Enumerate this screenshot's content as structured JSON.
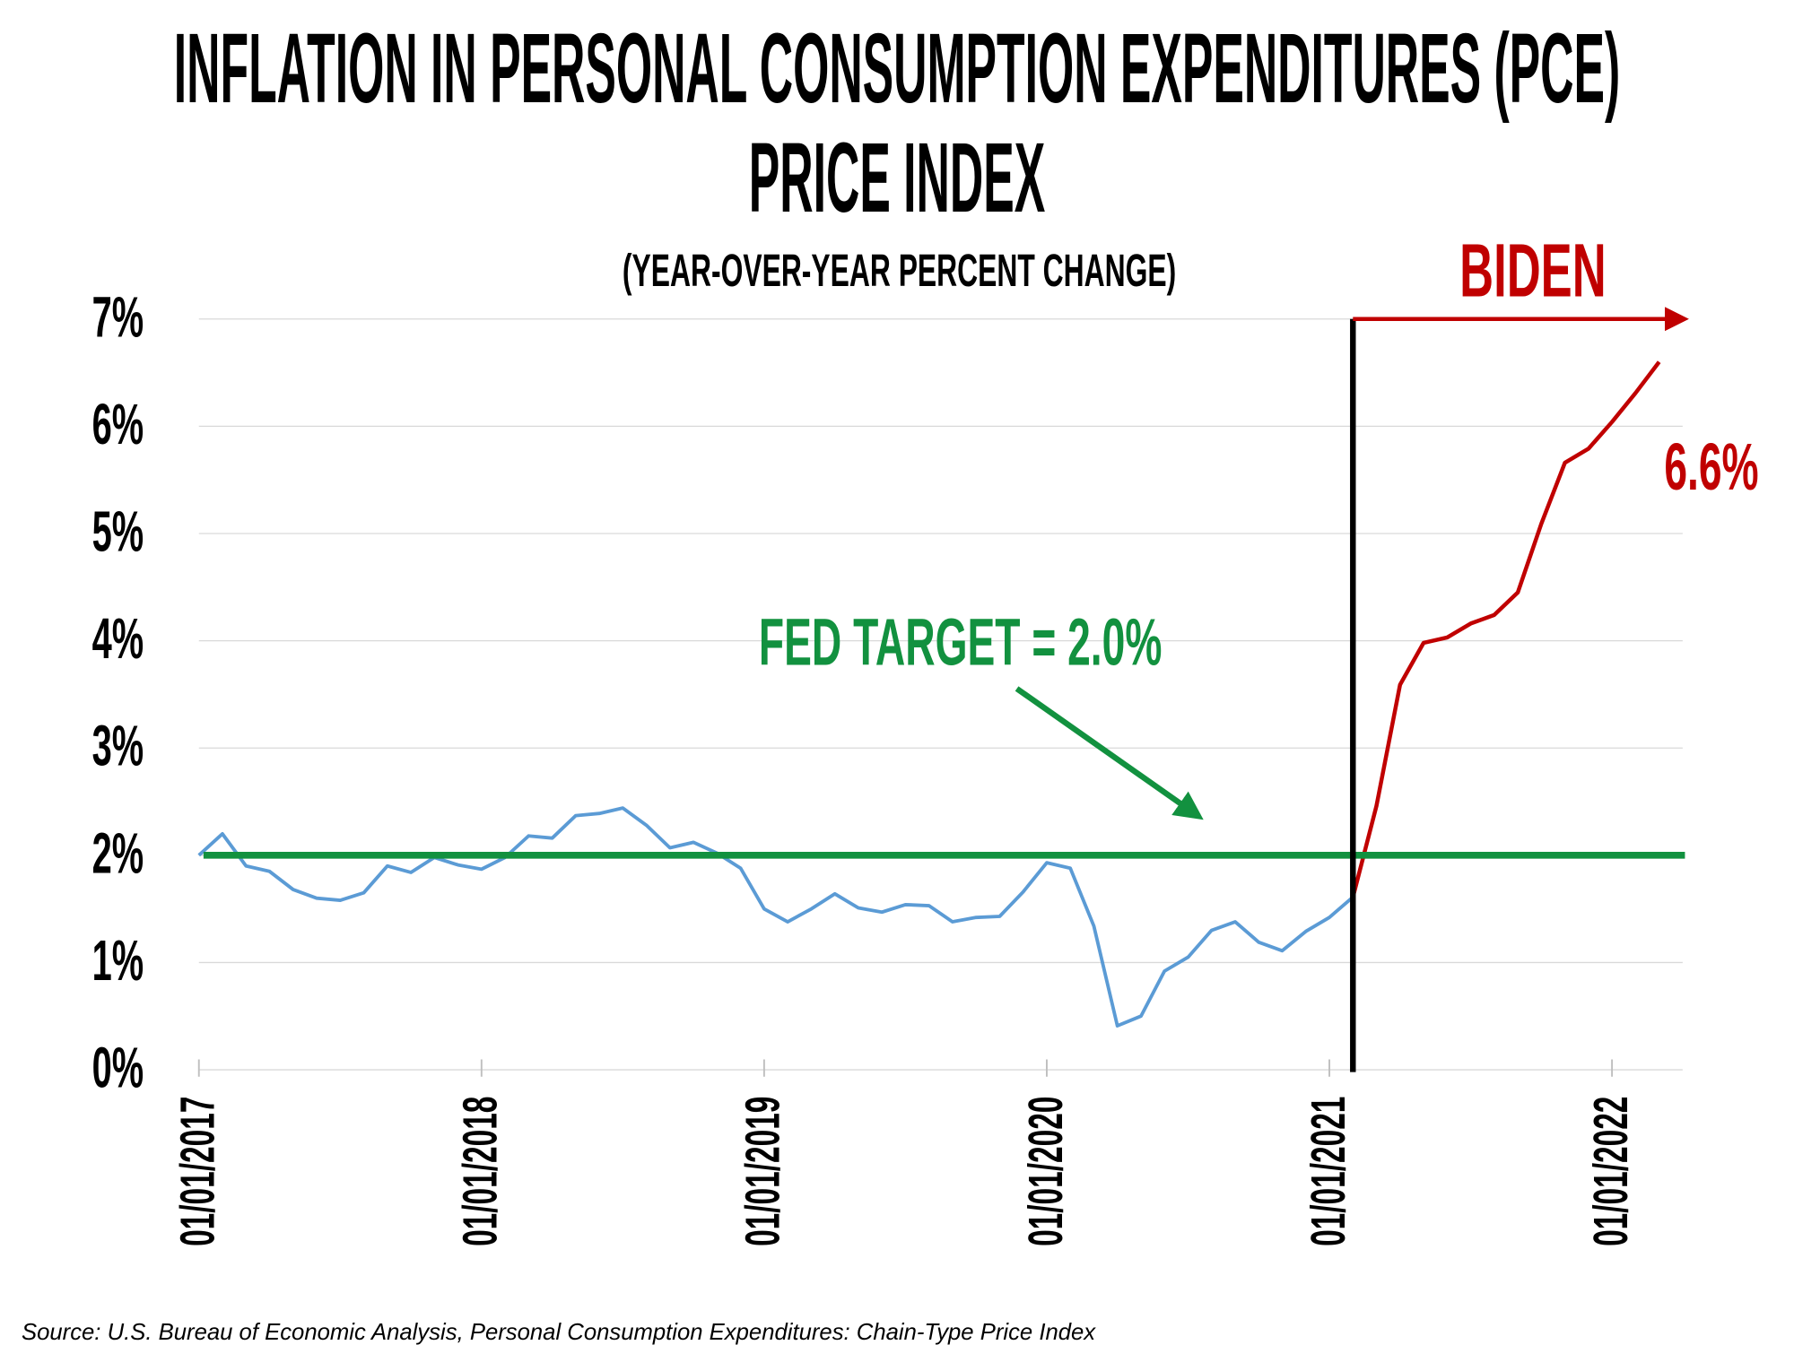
{
  "chart_data": {
    "type": "line",
    "title": "INFLATION IN PERSONAL CONSUMPTION EXPENDITURES (PCE) PRICE INDEX",
    "subtitle": "(YEAR-OVER-YEAR PERCENT CHANGE)",
    "source": "Source: U.S. Bureau of Economic Analysis, Personal Consumption Expenditures: Chain-Type Price Index",
    "x": [
      "2017-01-01",
      "2017-02-01",
      "2017-03-01",
      "2017-04-01",
      "2017-05-01",
      "2017-06-01",
      "2017-07-01",
      "2017-08-01",
      "2017-09-01",
      "2017-10-01",
      "2017-11-01",
      "2017-12-01",
      "2018-01-01",
      "2018-02-01",
      "2018-03-01",
      "2018-04-01",
      "2018-05-01",
      "2018-06-01",
      "2018-07-01",
      "2018-08-01",
      "2018-09-01",
      "2018-10-01",
      "2018-11-01",
      "2018-12-01",
      "2019-01-01",
      "2019-02-01",
      "2019-03-01",
      "2019-04-01",
      "2019-05-01",
      "2019-06-01",
      "2019-07-01",
      "2019-08-01",
      "2019-09-01",
      "2019-10-01",
      "2019-11-01",
      "2019-12-01",
      "2020-01-01",
      "2020-02-01",
      "2020-03-01",
      "2020-04-01",
      "2020-05-01",
      "2020-06-01",
      "2020-07-01",
      "2020-08-01",
      "2020-09-01",
      "2020-10-01",
      "2020-11-01",
      "2020-12-01",
      "2021-01-01",
      "2021-02-01",
      "2021-03-01",
      "2021-04-01",
      "2021-05-01",
      "2021-06-01",
      "2021-07-01",
      "2021-08-01",
      "2021-09-01",
      "2021-10-01",
      "2021-11-01",
      "2021-12-01",
      "2022-01-01",
      "2022-02-01",
      "2022-03-01"
    ],
    "series": [
      {
        "color": "#5b9bd5",
        "values": [
          2.0,
          2.2,
          1.9,
          1.85,
          1.68,
          1.6,
          1.58,
          1.65,
          1.9,
          1.84,
          1.98,
          1.91,
          1.87,
          1.98,
          2.18,
          2.16,
          2.37,
          2.39,
          2.44,
          2.28,
          2.07,
          2.12,
          2.02,
          1.88,
          1.5,
          1.38,
          1.5,
          1.64,
          1.51,
          1.47,
          1.54,
          1.53,
          1.38,
          1.42,
          1.43,
          1.66,
          1.93,
          1.88,
          1.34,
          0.41,
          0.5,
          0.92,
          1.05,
          1.3,
          1.38,
          1.19,
          1.11,
          1.29,
          1.42,
          1.61,
          null,
          null,
          null,
          null,
          null,
          null,
          null,
          null,
          null,
          null,
          null,
          null,
          null
        ]
      },
      {
        "color": "#c00000",
        "values": [
          null,
          null,
          null,
          null,
          null,
          null,
          null,
          null,
          null,
          null,
          null,
          null,
          null,
          null,
          null,
          null,
          null,
          null,
          null,
          null,
          null,
          null,
          null,
          null,
          null,
          null,
          null,
          null,
          null,
          null,
          null,
          null,
          null,
          null,
          null,
          null,
          null,
          null,
          null,
          null,
          null,
          null,
          null,
          null,
          null,
          null,
          null,
          null,
          null,
          1.61,
          2.46,
          3.59,
          3.98,
          4.03,
          4.16,
          4.24,
          4.45,
          5.09,
          5.66,
          5.79,
          6.04,
          6.31,
          6.6
        ]
      }
    ],
    "xlim": [
      "2017-01-01",
      "2022-04-01"
    ],
    "xticks": [
      {
        "value": "2017-01-01",
        "label": "01/01/2017"
      },
      {
        "value": "2018-01-01",
        "label": "01/01/2018"
      },
      {
        "value": "2019-01-01",
        "label": "01/01/2019"
      },
      {
        "value": "2020-01-01",
        "label": "01/01/2020"
      },
      {
        "value": "2021-01-01",
        "label": "01/01/2021"
      },
      {
        "value": "2022-01-01",
        "label": "01/01/2022"
      }
    ],
    "ylim": [
      0,
      7
    ],
    "yticks": [
      {
        "value": 0,
        "label": "0%"
      },
      {
        "value": 1,
        "label": "1%"
      },
      {
        "value": 2,
        "label": "2%"
      },
      {
        "value": 3,
        "label": "3%"
      },
      {
        "value": 4,
        "label": "4%"
      },
      {
        "value": 5,
        "label": "5%"
      },
      {
        "value": 6,
        "label": "6%"
      },
      {
        "value": 7,
        "label": "7%"
      }
    ],
    "grid": true,
    "reference_lines": [
      {
        "axis": "y",
        "value": 2.0,
        "color": "#12913f"
      },
      {
        "axis": "x",
        "value": "2021-02-01",
        "color": "#000000"
      }
    ],
    "annotations": [
      {
        "text": "BIDEN",
        "color": "#c00000"
      },
      {
        "text": "6.6%",
        "color": "#c00000"
      },
      {
        "text": "FED TARGET = 2.0%",
        "color": "#12913f"
      }
    ]
  }
}
